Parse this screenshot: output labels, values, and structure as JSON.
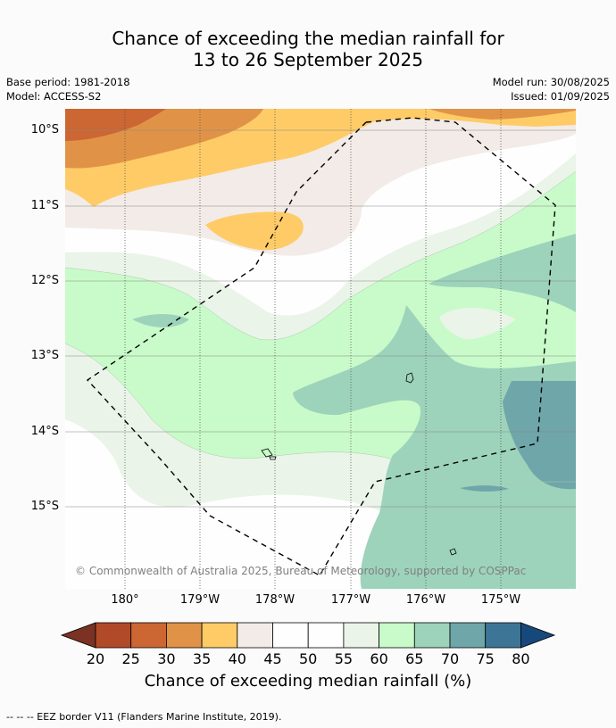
{
  "title": {
    "line1": "Chance of exceeding the median rainfall for",
    "line2": "13 to 26 September 2025"
  },
  "meta": {
    "base_period": "Base period: 1981-2018",
    "model": "Model: ACCESS-S2",
    "model_run": "Model run: 30/08/2025",
    "issued": "Issued: 01/09/2025"
  },
  "axes": {
    "lat_labels": [
      "10°S",
      "11°S",
      "12°S",
      "13°S",
      "14°S",
      "15°S"
    ],
    "lon_labels": [
      "180°",
      "179°W",
      "178°W",
      "177°W",
      "176°W",
      "175°W"
    ]
  },
  "copyright": "© Commonwealth of Australia 2025, Bureau of Meteorology, supported by COSPPac",
  "colorbar": {
    "ticks": [
      "20",
      "25",
      "30",
      "35",
      "40",
      "45",
      "50",
      "55",
      "60",
      "65",
      "70",
      "75",
      "80"
    ],
    "colors": [
      "#7a3222",
      "#b14a28",
      "#cc6632",
      "#e09347",
      "#fecb66",
      "#f2ebe7",
      "#fdfefd",
      "#fdfefd",
      "#eaf4e8",
      "#c8fbc9",
      "#9dd3bb",
      "#6fa6a9",
      "#3d7597",
      "#17487b"
    ],
    "label": "Chance of exceeding median rainfall (%)"
  },
  "footer": "--  --  -- EEZ border V11 (Flanders Marine Institute, 2019)."
}
